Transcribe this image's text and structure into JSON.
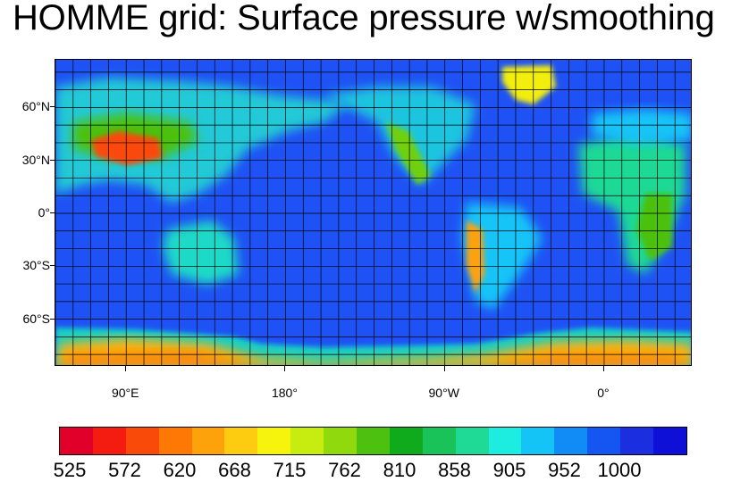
{
  "title": "HOMME grid: Surface pressure w/smoothing",
  "map": {
    "lat_labels": [
      {
        "text": "60°N",
        "lat": 60
      },
      {
        "text": "30°N",
        "lat": 30
      },
      {
        "text": "0°",
        "lat": 0
      },
      {
        "text": "30°S",
        "lat": -30
      },
      {
        "text": "60°S",
        "lat": -60
      }
    ],
    "lon_labels": [
      {
        "text": "90°E",
        "lon": 90
      },
      {
        "text": "180°",
        "lon": 180
      },
      {
        "text": "90°W",
        "lon": 270
      },
      {
        "text": "0°",
        "lon": 360
      }
    ],
    "lon_range": [
      50,
      410
    ],
    "lat_range": [
      -87,
      87
    ],
    "grid_spacing_deg": 10,
    "ocean_color": "#1f52f4",
    "grid_color": "#000000"
  },
  "colorbar": {
    "labels": [
      "525",
      "572",
      "620",
      "668",
      "715",
      "762",
      "810",
      "858",
      "905",
      "952",
      "1000"
    ],
    "colors": [
      "#e0002a",
      "#f41c10",
      "#fa4a0a",
      "#fd7805",
      "#fda20a",
      "#fdcb10",
      "#f6f30d",
      "#c6ed0f",
      "#8fd90d",
      "#4cc10f",
      "#0fab1c",
      "#1ac25a",
      "#1fd996",
      "#1dede0",
      "#14c4f7",
      "#118bf5",
      "#1556f2",
      "#1b2ee0",
      "#0e10d8"
    ],
    "min": 525,
    "max": 1000
  }
}
